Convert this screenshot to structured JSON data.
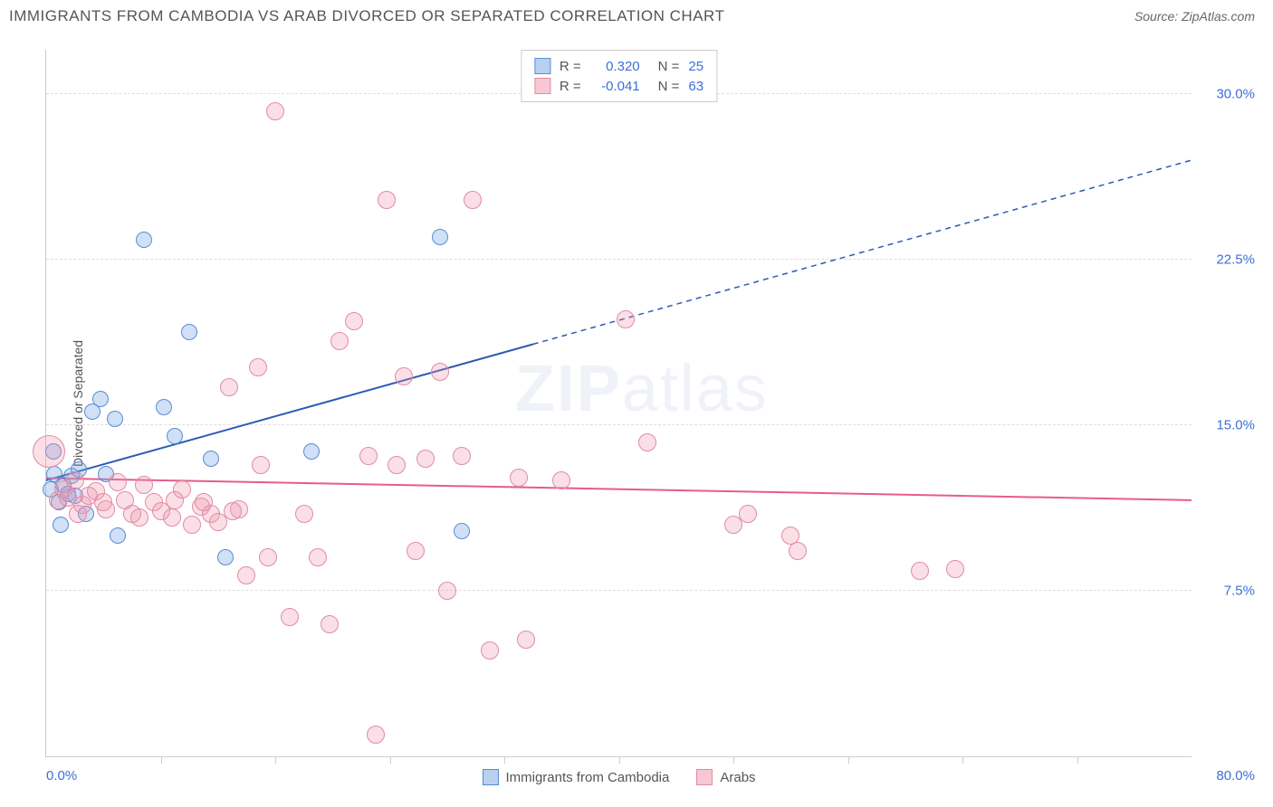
{
  "header": {
    "title": "IMMIGRANTS FROM CAMBODIA VS ARAB DIVORCED OR SEPARATED CORRELATION CHART",
    "source_prefix": "Source: ",
    "source": "ZipAtlas.com"
  },
  "watermark": {
    "bold": "ZIP",
    "light": "atlas"
  },
  "chart": {
    "type": "scatter",
    "background_color": "#ffffff",
    "grid_color": "#dddddd",
    "axis_color": "#cccccc",
    "tick_label_color": "#3a6fd8",
    "tick_fontsize": 15,
    "ylabel": "Divorced or Separated",
    "ylabel_fontsize": 14,
    "xlim": [
      0,
      80
    ],
    "ylim": [
      0,
      32
    ],
    "x_axis_start_label": "0.0%",
    "x_axis_end_label": "80.0%",
    "x_ticks_at": [
      8,
      16,
      24,
      32,
      40,
      48,
      56,
      64,
      72
    ],
    "y_gridlines": [
      {
        "val": 7.5,
        "label": "7.5%"
      },
      {
        "val": 15.0,
        "label": "15.0%"
      },
      {
        "val": 22.5,
        "label": "22.5%"
      },
      {
        "val": 30.0,
        "label": "30.0%"
      }
    ],
    "series": [
      {
        "id": "cambodia",
        "label": "Immigrants from Cambodia",
        "R": "0.320",
        "N": "25",
        "fill": "rgba(120,165,225,0.35)",
        "stroke": "#5a8cd6",
        "swatch_fill": "#b9d0f0",
        "swatch_border": "#5a8cd6",
        "trend": {
          "x1": 0,
          "y1": 12.5,
          "x2": 80,
          "y2": 27.0,
          "solid_until_x": 34,
          "color": "#2a5bb5",
          "width": 2
        },
        "marker_radius": 9,
        "points": [
          {
            "x": 0.3,
            "y": 12.1
          },
          {
            "x": 0.6,
            "y": 12.8
          },
          {
            "x": 0.9,
            "y": 11.5
          },
          {
            "x": 1.2,
            "y": 12.3
          },
          {
            "x": 1.5,
            "y": 11.9
          },
          {
            "x": 1.8,
            "y": 12.7
          },
          {
            "x": 2.0,
            "y": 11.8
          },
          {
            "x": 2.3,
            "y": 13.0
          },
          {
            "x": 3.2,
            "y": 15.6
          },
          {
            "x": 4.2,
            "y": 12.8
          },
          {
            "x": 4.8,
            "y": 15.3
          },
          {
            "x": 5.0,
            "y": 10.0
          },
          {
            "x": 6.8,
            "y": 23.4
          },
          {
            "x": 8.2,
            "y": 15.8
          },
          {
            "x": 9.0,
            "y": 14.5
          },
          {
            "x": 10.0,
            "y": 19.2
          },
          {
            "x": 11.5,
            "y": 13.5
          },
          {
            "x": 12.5,
            "y": 9.0
          },
          {
            "x": 18.5,
            "y": 13.8
          },
          {
            "x": 27.5,
            "y": 23.5
          },
          {
            "x": 29.0,
            "y": 10.2
          },
          {
            "x": 3.8,
            "y": 16.2
          },
          {
            "x": 2.8,
            "y": 11.0
          },
          {
            "x": 1.0,
            "y": 10.5
          },
          {
            "x": 0.5,
            "y": 13.8
          }
        ]
      },
      {
        "id": "arabs",
        "label": "Arabs",
        "R": "-0.041",
        "N": "63",
        "fill": "rgba(240,150,175,0.3)",
        "stroke": "#e28ba5",
        "swatch_fill": "#f6c8d4",
        "swatch_border": "#e28ba5",
        "trend": {
          "x1": 0,
          "y1": 12.6,
          "x2": 80,
          "y2": 11.6,
          "solid_until_x": 80,
          "color": "#e85b8a",
          "width": 2
        },
        "marker_radius": 10,
        "points": [
          {
            "x": 0.2,
            "y": 13.8,
            "r": 18
          },
          {
            "x": 0.8,
            "y": 11.6
          },
          {
            "x": 1.2,
            "y": 12.1
          },
          {
            "x": 1.5,
            "y": 11.7
          },
          {
            "x": 2.0,
            "y": 12.5
          },
          {
            "x": 2.5,
            "y": 11.4
          },
          {
            "x": 3.0,
            "y": 11.8
          },
          {
            "x": 3.5,
            "y": 12.0
          },
          {
            "x": 4.2,
            "y": 11.2
          },
          {
            "x": 5.0,
            "y": 12.4
          },
          {
            "x": 5.5,
            "y": 11.6
          },
          {
            "x": 6.0,
            "y": 11.0
          },
          {
            "x": 6.8,
            "y": 12.3
          },
          {
            "x": 7.5,
            "y": 11.5
          },
          {
            "x": 8.0,
            "y": 11.1
          },
          {
            "x": 8.8,
            "y": 10.8
          },
          {
            "x": 9.5,
            "y": 12.1
          },
          {
            "x": 10.2,
            "y": 10.5
          },
          {
            "x": 10.8,
            "y": 11.3
          },
          {
            "x": 11.5,
            "y": 11.0
          },
          {
            "x": 12.0,
            "y": 10.6
          },
          {
            "x": 12.8,
            "y": 16.7
          },
          {
            "x": 13.5,
            "y": 11.2
          },
          {
            "x": 14.0,
            "y": 8.2
          },
          {
            "x": 14.8,
            "y": 17.6
          },
          {
            "x": 15.5,
            "y": 9.0
          },
          {
            "x": 16.0,
            "y": 29.2
          },
          {
            "x": 17.0,
            "y": 6.3
          },
          {
            "x": 18.0,
            "y": 11.0
          },
          {
            "x": 19.0,
            "y": 9.0
          },
          {
            "x": 19.8,
            "y": 6.0
          },
          {
            "x": 20.5,
            "y": 18.8
          },
          {
            "x": 21.5,
            "y": 19.7
          },
          {
            "x": 22.5,
            "y": 13.6
          },
          {
            "x": 23.0,
            "y": 1.0
          },
          {
            "x": 23.8,
            "y": 25.2
          },
          {
            "x": 24.5,
            "y": 13.2
          },
          {
            "x": 25.0,
            "y": 17.2
          },
          {
            "x": 25.8,
            "y": 9.3
          },
          {
            "x": 26.5,
            "y": 13.5
          },
          {
            "x": 27.5,
            "y": 17.4
          },
          {
            "x": 28.0,
            "y": 7.5
          },
          {
            "x": 29.0,
            "y": 13.6
          },
          {
            "x": 29.8,
            "y": 25.2
          },
          {
            "x": 31.0,
            "y": 4.8
          },
          {
            "x": 33.0,
            "y": 12.6
          },
          {
            "x": 33.5,
            "y": 5.3
          },
          {
            "x": 36.0,
            "y": 12.5
          },
          {
            "x": 40.5,
            "y": 19.8
          },
          {
            "x": 42.0,
            "y": 14.2
          },
          {
            "x": 48.0,
            "y": 10.5
          },
          {
            "x": 49.0,
            "y": 11.0
          },
          {
            "x": 52.0,
            "y": 10.0
          },
          {
            "x": 52.5,
            "y": 9.3
          },
          {
            "x": 61.0,
            "y": 8.4
          },
          {
            "x": 63.5,
            "y": 8.5
          },
          {
            "x": 2.2,
            "y": 11.0
          },
          {
            "x": 4.0,
            "y": 11.5
          },
          {
            "x": 6.5,
            "y": 10.8
          },
          {
            "x": 9.0,
            "y": 11.6
          },
          {
            "x": 11.0,
            "y": 11.5
          },
          {
            "x": 13.0,
            "y": 11.1
          },
          {
            "x": 15.0,
            "y": 13.2
          }
        ]
      }
    ],
    "legend_bottom_order": [
      "cambodia",
      "arabs"
    ]
  }
}
